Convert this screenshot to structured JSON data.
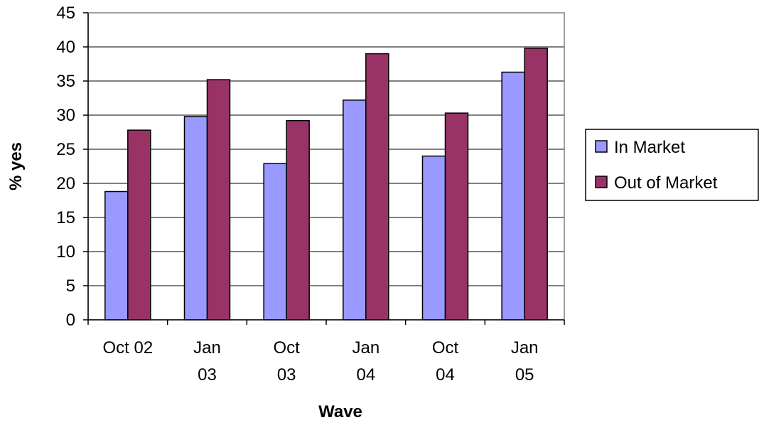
{
  "chart_data": {
    "type": "bar",
    "title": "",
    "xlabel": "Wave",
    "ylabel": "% yes",
    "categories": [
      "Oct 02",
      "Jan 03",
      "Oct 03",
      "Jan 04",
      "Oct 04",
      "Jan 05"
    ],
    "category_lines": [
      [
        "Oct 02"
      ],
      [
        "Jan",
        "03"
      ],
      [
        "Oct",
        "03"
      ],
      [
        "Jan",
        "04"
      ],
      [
        "Oct",
        "04"
      ],
      [
        "Jan",
        "05"
      ]
    ],
    "series": [
      {
        "name": "In Market",
        "color": "#9999ff",
        "values": [
          18.8,
          29.8,
          22.9,
          32.2,
          24.0,
          36.3
        ]
      },
      {
        "name": "Out of Market",
        "color": "#993366",
        "values": [
          27.8,
          35.2,
          29.2,
          39.0,
          30.3,
          39.8
        ]
      }
    ],
    "ylim": [
      0,
      45
    ],
    "yticks": [
      0,
      5,
      10,
      15,
      20,
      25,
      30,
      35,
      40,
      45
    ],
    "grid": true,
    "legend_position": "right"
  }
}
